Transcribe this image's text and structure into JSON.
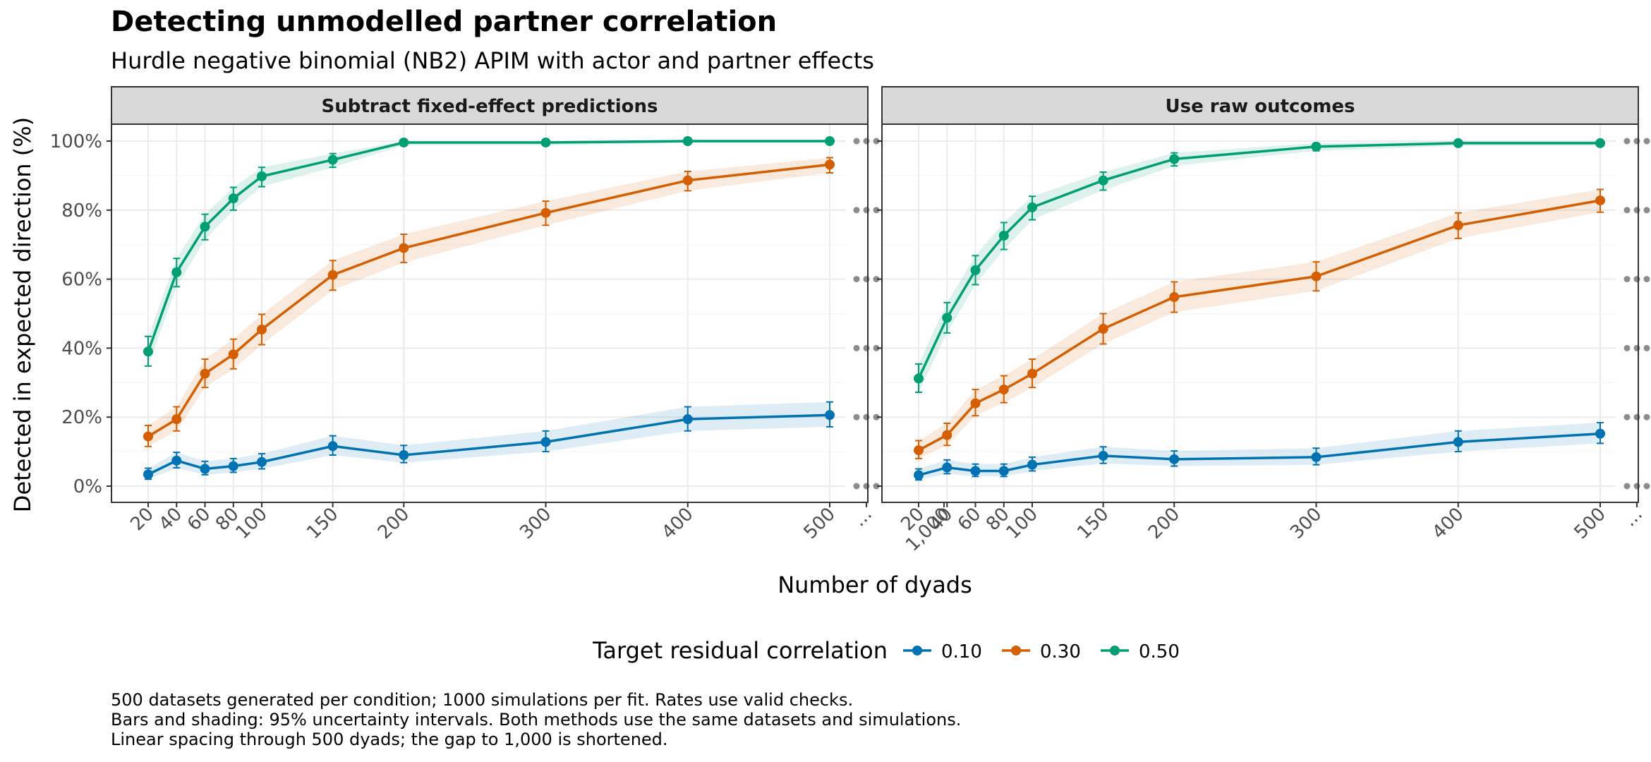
{
  "chart_data": {
    "type": "line",
    "title": "Detecting unmodelled partner correlation",
    "subtitle": "Hurdle negative binomial (NB2) APIM with actor and partner effects",
    "xlabel": "Number of dyads",
    "ylabel": "Detected in expected direction (%)",
    "x_tick_labels": [
      "20",
      "40",
      "60",
      "80",
      "100",
      "150",
      "200",
      "300",
      "400",
      "500",
      "...",
      "1,000"
    ],
    "y_tick_labels": [
      "0%",
      "20%",
      "40%",
      "60%",
      "80%",
      "100%"
    ],
    "ylim": [
      0,
      1
    ],
    "x": [
      20,
      40,
      60,
      80,
      100,
      150,
      200,
      300,
      400,
      500
    ],
    "legend": {
      "title": "Target residual correlation",
      "position": "bottom"
    },
    "caption": [
      "500 datasets generated per condition; 1000 simulations per fit. Rates use valid checks.",
      "Bars and shading: 95% uncertainty intervals. Both methods use the same datasets and simulations.",
      "Linear spacing through 500 dyads; the gap to 1,000 is shortened."
    ],
    "panels": [
      {
        "title": "Subtract fixed-effect predictions",
        "series": [
          {
            "name": "0.10",
            "color": "#0072B2",
            "values": [
              0.034,
              0.074,
              0.05,
              0.058,
              0.07,
              0.116,
              0.09,
              0.128,
              0.194,
              0.206
            ],
            "lower": [
              0.02,
              0.053,
              0.033,
              0.04,
              0.05,
              0.09,
              0.068,
              0.1,
              0.16,
              0.172
            ],
            "upper": [
              0.052,
              0.098,
              0.072,
              0.08,
              0.094,
              0.146,
              0.118,
              0.16,
              0.23,
              0.244
            ],
            "x_1000": 0.32,
            "lower_1000": 0.28,
            "upper_1000": 0.362
          },
          {
            "name": "0.30",
            "color": "#D55E00",
            "values": [
              0.144,
              0.194,
              0.326,
              0.382,
              0.454,
              0.612,
              0.69,
              0.792,
              0.886,
              0.932
            ],
            "lower": [
              0.115,
              0.16,
              0.286,
              0.34,
              0.41,
              0.568,
              0.648,
              0.756,
              0.856,
              0.908
            ],
            "upper": [
              0.176,
              0.23,
              0.368,
              0.426,
              0.498,
              0.654,
              0.73,
              0.826,
              0.912,
              0.952
            ],
            "x_1000": 0.998,
            "lower_1000": 0.99,
            "upper_1000": 1.0
          },
          {
            "name": "0.50",
            "color": "#009E73",
            "values": [
              0.39,
              0.62,
              0.752,
              0.834,
              0.898,
              0.946,
              0.996,
              0.996,
              1.0,
              1.0
            ],
            "lower": [
              0.348,
              0.578,
              0.714,
              0.8,
              0.868,
              0.924,
              0.988,
              0.988,
              0.994,
              0.994
            ],
            "upper": [
              0.434,
              0.66,
              0.788,
              0.866,
              0.924,
              0.964,
              1.0,
              1.0,
              1.0,
              1.0
            ],
            "x_1000": 1.0,
            "lower_1000": 0.994,
            "upper_1000": 1.0
          }
        ]
      },
      {
        "title": "Use raw outcomes",
        "series": [
          {
            "name": "0.10",
            "color": "#0072B2",
            "values": [
              0.032,
              0.054,
              0.044,
              0.044,
              0.062,
              0.088,
              0.078,
              0.084,
              0.128,
              0.152
            ],
            "lower": [
              0.018,
              0.036,
              0.028,
              0.028,
              0.044,
              0.066,
              0.058,
              0.062,
              0.1,
              0.124
            ],
            "upper": [
              0.05,
              0.076,
              0.064,
              0.064,
              0.084,
              0.114,
              0.102,
              0.11,
              0.16,
              0.184
            ],
            "x_1000": 0.2,
            "lower_1000": 0.168,
            "upper_1000": 0.236
          },
          {
            "name": "0.30",
            "color": "#D55E00",
            "values": [
              0.104,
              0.148,
              0.24,
              0.28,
              0.326,
              0.456,
              0.548,
              0.608,
              0.756,
              0.828
            ],
            "lower": [
              0.08,
              0.118,
              0.204,
              0.242,
              0.286,
              0.412,
              0.504,
              0.566,
              0.718,
              0.794
            ],
            "upper": [
              0.132,
              0.182,
              0.28,
              0.32,
              0.368,
              0.5,
              0.592,
              0.65,
              0.792,
              0.86
            ],
            "x_1000": 0.976,
            "lower_1000": 0.962,
            "upper_1000": 0.988
          },
          {
            "name": "0.50",
            "color": "#009E73",
            "values": [
              0.312,
              0.488,
              0.626,
              0.726,
              0.808,
              0.886,
              0.948,
              0.984,
              0.994,
              0.994
            ],
            "lower": [
              0.272,
              0.444,
              0.584,
              0.686,
              0.772,
              0.858,
              0.928,
              0.972,
              0.986,
              0.986
            ],
            "upper": [
              0.354,
              0.532,
              0.668,
              0.764,
              0.84,
              0.91,
              0.966,
              0.994,
              1.0,
              1.0
            ],
            "x_1000": 1.0,
            "lower_1000": 0.994,
            "upper_1000": 1.0
          }
        ]
      }
    ]
  }
}
